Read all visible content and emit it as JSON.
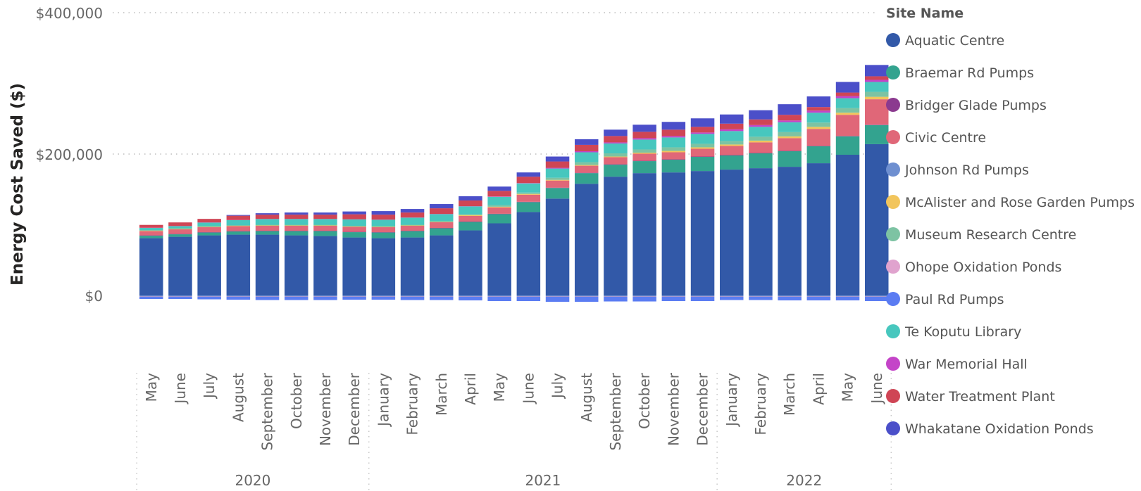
{
  "chart_data": {
    "type": "bar",
    "stacked": true,
    "ylabel": "Energy Cost Saved ($)",
    "y_ticks": [
      "$400,000",
      "$200,000",
      "$0"
    ],
    "y_tick_values": [
      400000,
      200000,
      0
    ],
    "ylim": [
      -12000,
      400000
    ],
    "grid": "horizontal dotted",
    "legend_title": "Site Name",
    "legend_position": "right",
    "categories": [
      "May",
      "June",
      "July",
      "August",
      "September",
      "October",
      "November",
      "December",
      "January",
      "February",
      "March",
      "April",
      "May",
      "June",
      "July",
      "August",
      "September",
      "October",
      "November",
      "December",
      "January",
      "February",
      "March",
      "April",
      "May",
      "June"
    ],
    "year_groups": [
      {
        "label": "2020",
        "start": 0,
        "end": 7
      },
      {
        "label": "2021",
        "start": 8,
        "end": 19
      },
      {
        "label": "2022",
        "start": 20,
        "end": 25
      }
    ],
    "series": [
      {
        "name": "Aquatic Centre",
        "color": "#3259A8",
        "values": [
          81000,
          83000,
          85000,
          86000,
          86000,
          85000,
          84000,
          82000,
          81000,
          82000,
          85000,
          92000,
          102000,
          118000,
          137000,
          158000,
          168000,
          173000,
          174000,
          176000,
          178000,
          180000,
          182000,
          187000,
          199000,
          214000
        ]
      },
      {
        "name": "Braemar Rd Pumps",
        "color": "#33A38F",
        "values": [
          3500,
          3500,
          4000,
          4500,
          5000,
          6000,
          7000,
          7500,
          8000,
          9000,
          10000,
          12000,
          13000,
          14000,
          15000,
          15000,
          17000,
          17000,
          18000,
          20000,
          20000,
          21000,
          22000,
          24000,
          26000,
          27000
        ]
      },
      {
        "name": "Bridger Glade Pumps",
        "color": "#8B3A8F",
        "values": [
          500,
          500,
          500,
          500,
          500,
          500,
          500,
          500,
          500,
          500,
          500,
          500,
          500,
          500,
          500,
          500,
          500,
          500,
          500,
          500,
          500,
          500,
          500,
          500,
          500,
          500
        ]
      },
      {
        "name": "Civic Centre",
        "color": "#E06778",
        "values": [
          6000,
          6500,
          7000,
          7000,
          7000,
          7000,
          7000,
          7000,
          7000,
          7000,
          8000,
          8000,
          9000,
          10000,
          10000,
          10000,
          10000,
          10000,
          10000,
          11000,
          13000,
          15000,
          18000,
          24000,
          30000,
          36000
        ]
      },
      {
        "name": "Johnson Rd Pumps",
        "color": "#6E8FD0",
        "values": [
          -1500,
          -1500,
          -1500,
          -1500,
          -1500,
          -1500,
          -1500,
          -1500,
          -1500,
          -1500,
          -1500,
          -1500,
          -1500,
          -1500,
          -1500,
          -1500,
          -1500,
          -1500,
          -1500,
          -1500,
          -1500,
          -1500,
          -1500,
          -1500,
          -1500,
          -1500
        ]
      },
      {
        "name": "McAlister and Rose Garden Pumps",
        "color": "#F2C55C",
        "values": [
          500,
          500,
          500,
          500,
          500,
          500,
          500,
          500,
          500,
          500,
          500,
          1000,
          1000,
          1000,
          1000,
          1000,
          1000,
          1500,
          2000,
          2000,
          2000,
          2500,
          2500,
          3000,
          3000,
          3500
        ]
      },
      {
        "name": "Museum Research Centre",
        "color": "#7DC3A3",
        "values": [
          1000,
          1000,
          1000,
          1000,
          1000,
          1000,
          1000,
          1000,
          1000,
          1000,
          1000,
          1500,
          2000,
          2000,
          3000,
          4000,
          4500,
          4500,
          5000,
          5000,
          5000,
          5500,
          6000,
          6000,
          6500,
          7000
        ]
      },
      {
        "name": "Ohope Oxidation Ponds",
        "color": "#E0A3CE",
        "values": [
          -500,
          -500,
          -500,
          -500,
          -500,
          -500,
          -500,
          -500,
          -500,
          -500,
          -500,
          -500,
          -500,
          -500,
          -500,
          -500,
          -500,
          -500,
          -500,
          -500,
          -500,
          -500,
          -500,
          -500,
          -500,
          -500
        ]
      },
      {
        "name": "Paul Rd Pumps",
        "color": "#5B7CF2",
        "values": [
          -3000,
          -3000,
          -3500,
          -4000,
          -4500,
          -4500,
          -4500,
          -4000,
          -4000,
          -4500,
          -4500,
          -5000,
          -6000,
          -6000,
          -7000,
          -7000,
          -6500,
          -6500,
          -6000,
          -6000,
          -4500,
          -4500,
          -5000,
          -5000,
          -5000,
          -6000
        ]
      },
      {
        "name": "Te Koputu Library",
        "color": "#47C7BE",
        "values": [
          3000,
          3000,
          5000,
          7000,
          8000,
          8000,
          8000,
          9000,
          9000,
          10000,
          10000,
          11000,
          12000,
          13000,
          13000,
          14000,
          14000,
          14000,
          14000,
          14000,
          14000,
          14000,
          14000,
          14000,
          14000,
          14000
        ]
      },
      {
        "name": "War Memorial Hall",
        "color": "#C444C8",
        "values": [
          300,
          300,
          300,
          300,
          300,
          300,
          300,
          300,
          300,
          300,
          300,
          300,
          500,
          500,
          1000,
          1500,
          1500,
          2000,
          2000,
          2000,
          2500,
          2500,
          2500,
          3000,
          3000,
          3000
        ]
      },
      {
        "name": "Water Treatment Plant",
        "color": "#CF4555",
        "values": [
          4000,
          5000,
          5000,
          6000,
          6000,
          6000,
          6000,
          7000,
          7000,
          7000,
          8000,
          8000,
          8000,
          9000,
          9000,
          9000,
          9000,
          9000,
          9000,
          8000,
          8000,
          8000,
          8000,
          5000,
          5000,
          5000
        ]
      },
      {
        "name": "Whakatane Oxidation Ponds",
        "color": "#4B4FC9",
        "values": [
          0,
          0,
          0,
          1000,
          2000,
          3000,
          3000,
          4000,
          5000,
          5000,
          6000,
          6000,
          6000,
          6000,
          7000,
          8000,
          9000,
          10000,
          11000,
          12000,
          13000,
          13000,
          15000,
          15000,
          15000,
          16000
        ]
      }
    ]
  }
}
